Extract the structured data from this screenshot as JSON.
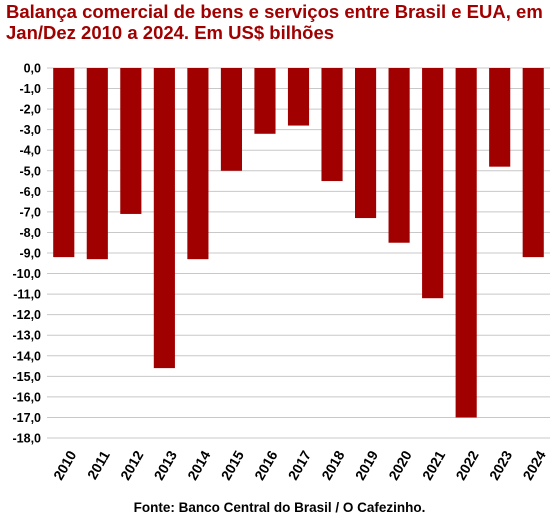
{
  "chart_data": {
    "type": "bar",
    "title": "Balança comercial de bens e serviços entre Brasil e EUA, em Jan/Dez 2010 a 2024. Em US$ bilhões",
    "categories": [
      "2010",
      "2011",
      "2012",
      "2013",
      "2014",
      "2015",
      "2016",
      "2017",
      "2018",
      "2019",
      "2020",
      "2021",
      "2022",
      "2023",
      "2024"
    ],
    "values": [
      -9.2,
      -9.3,
      -7.1,
      -14.6,
      -9.3,
      -5.0,
      -3.2,
      -2.8,
      -5.5,
      -7.3,
      -8.5,
      -11.2,
      -17.0,
      -4.8,
      -9.2
    ],
    "ylim": [
      -18,
      0
    ],
    "yticks": [
      "0,0",
      "-1,0",
      "-2,0",
      "-3,0",
      "-4,0",
      "-5,0",
      "-6,0",
      "-7,0",
      "-8,0",
      "-9,0",
      "-10,0",
      "-11,0",
      "-12,0",
      "-13,0",
      "-14,0",
      "-15,0",
      "-16,0",
      "-17,0",
      "-18,0"
    ],
    "ytick_values": [
      0,
      -1,
      -2,
      -3,
      -4,
      -5,
      -6,
      -7,
      -8,
      -9,
      -10,
      -11,
      -12,
      -13,
      -14,
      -15,
      -16,
      -17,
      -18
    ],
    "grid": true,
    "bar_color": "#a00000",
    "xlabel": "",
    "ylabel": ""
  },
  "source": "Fonte: Banco Central do Brasil / O Cafezinho."
}
